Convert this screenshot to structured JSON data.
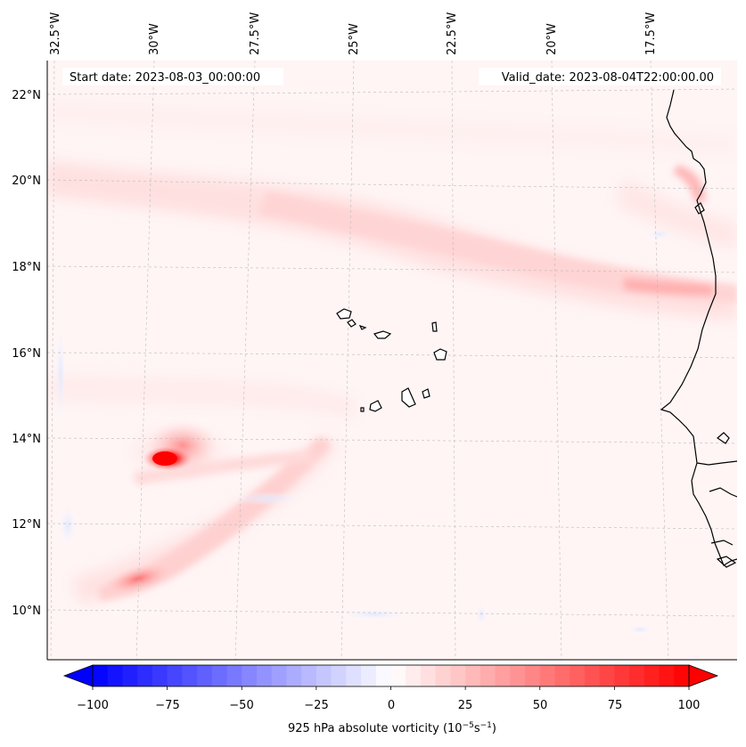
{
  "header": {
    "start_date": "Start date: 2023-08-03_00:00:00",
    "valid_date": "Valid_date: 2023-08-04T22:00:00.00"
  },
  "map": {
    "lon_labels": [
      "32.5°W",
      "30°W",
      "27.5°W",
      "25°W",
      "22.5°W",
      "20°W",
      "17.5°W"
    ],
    "lat_labels": [
      "22°N",
      "20°N",
      "18°N",
      "16°N",
      "14°N",
      "12°N",
      "10°N"
    ],
    "colors": {
      "positive": "#ff0000",
      "negative": "#0000ff",
      "coast": "#000000",
      "grid": "#bbbbbb"
    }
  },
  "colorbar": {
    "ticks": [
      "−100",
      "−75",
      "−50",
      "−25",
      "0",
      "25",
      "50",
      "75",
      "100"
    ],
    "tick_values": [
      -100,
      -75,
      -50,
      -25,
      0,
      25,
      50,
      75,
      100
    ],
    "range": [
      -100,
      100
    ],
    "title_prefix": "925 hPa absolute vorticity (10",
    "title_exp1": "−5",
    "title_mid": "s",
    "title_exp2": "−1",
    "title_suffix": ")"
  }
}
